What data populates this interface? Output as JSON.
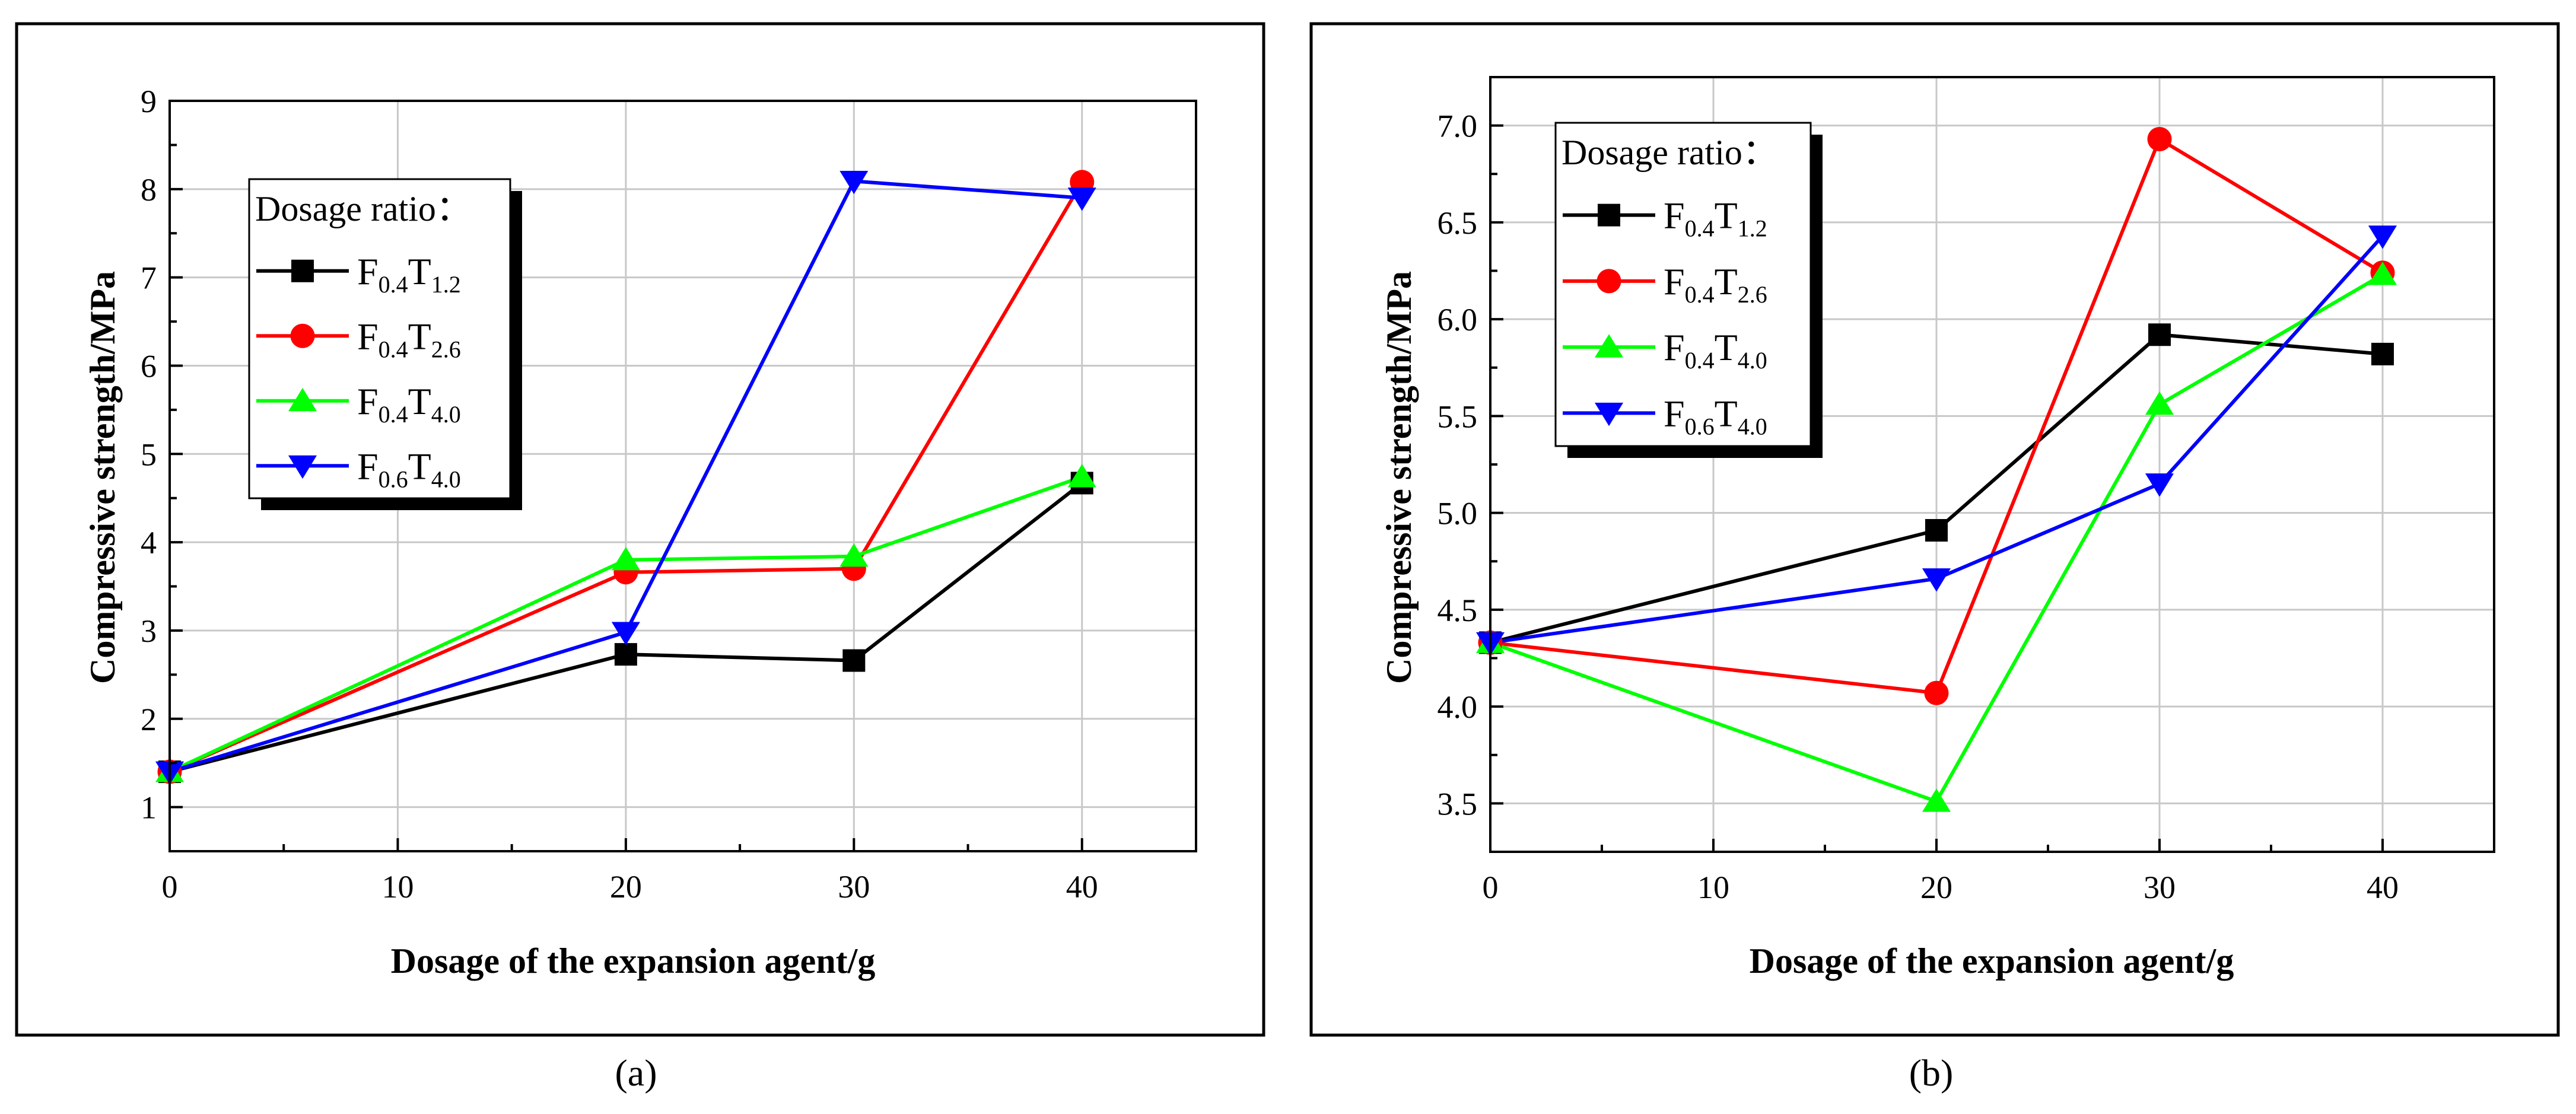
{
  "colors": {
    "F0.4T1.2": "#000000",
    "F0.4T2.6": "#ff0000",
    "F0.4T4.0": "#00ff00",
    "F0.6T4.0": "#0000ff",
    "grid": "#c8c8c8"
  },
  "chart_data": [
    {
      "type": "line",
      "panel": "a",
      "caption": "(a)",
      "xlabel": "Dosage of the expansion agent/g",
      "ylabel": "Compressive strength/MPa",
      "xlim": [
        0,
        45
      ],
      "ylim": [
        0.5,
        9
      ],
      "xticks": [
        0,
        10,
        20,
        30,
        40
      ],
      "yticks": [
        1,
        2,
        3,
        4,
        5,
        6,
        7,
        8,
        9
      ],
      "grid": true,
      "legend_placement": "upper-left",
      "legend_title": "Dosage ratio：",
      "x": [
        0,
        20,
        30,
        40
      ],
      "series": [
        {
          "name": "F0.4T1.2",
          "label_main1": "F",
          "label_sub1": "0.4",
          "label_main2": "T",
          "label_sub2": "1.2",
          "marker": "square",
          "values": [
            1.4,
            2.73,
            2.66,
            4.67
          ]
        },
        {
          "name": "F0.4T2.6",
          "label_main1": "F",
          "label_sub1": "0.4",
          "label_main2": "T",
          "label_sub2": "2.6",
          "marker": "circle",
          "values": [
            1.4,
            3.66,
            3.7,
            8.08
          ]
        },
        {
          "name": "F0.4T4.0",
          "label_main1": "F",
          "label_sub1": "0.4",
          "label_main2": "T",
          "label_sub2": "4.0",
          "marker": "triangle-up",
          "values": [
            1.4,
            3.8,
            3.84,
            4.74
          ]
        },
        {
          "name": "F0.6T4.0",
          "label_main1": "F",
          "label_sub1": "0.6",
          "label_main2": "T",
          "label_sub2": "4.0",
          "marker": "triangle-down",
          "values": [
            1.4,
            2.98,
            8.09,
            7.9
          ]
        }
      ]
    },
    {
      "type": "line",
      "panel": "b",
      "caption": "(b)",
      "xlabel": "Dosage of the expansion agent/g",
      "ylabel": "Compressive strength/MPa",
      "xlim": [
        0,
        45
      ],
      "ylim": [
        3.25,
        7.25
      ],
      "xticks": [
        0,
        10,
        20,
        30,
        40
      ],
      "yticks": [
        3.5,
        4.0,
        4.5,
        5.0,
        5.5,
        6.0,
        6.5,
        7.0
      ],
      "grid": true,
      "legend_placement": "upper-left",
      "legend_title": "Dosage ratio：",
      "x": [
        0,
        20,
        30,
        40
      ],
      "series": [
        {
          "name": "F0.4T1.2",
          "label_main1": "F",
          "label_sub1": "0.4",
          "label_main2": "T",
          "label_sub2": "1.2",
          "marker": "square",
          "values": [
            4.33,
            4.91,
            5.92,
            5.82
          ]
        },
        {
          "name": "F0.4T2.6",
          "label_main1": "F",
          "label_sub1": "0.4",
          "label_main2": "T",
          "label_sub2": "2.6",
          "marker": "circle",
          "values": [
            4.33,
            4.07,
            6.93,
            6.24
          ]
        },
        {
          "name": "F0.4T4.0",
          "label_main1": "F",
          "label_sub1": "0.4",
          "label_main2": "T",
          "label_sub2": "4.0",
          "marker": "triangle-up",
          "values": [
            4.33,
            3.51,
            5.56,
            6.23
          ]
        },
        {
          "name": "F0.6T4.0",
          "label_main1": "F",
          "label_sub1": "0.6",
          "label_main2": "T",
          "label_sub2": "4.0",
          "marker": "triangle-down",
          "values": [
            4.33,
            4.66,
            5.15,
            6.43
          ]
        }
      ]
    }
  ]
}
